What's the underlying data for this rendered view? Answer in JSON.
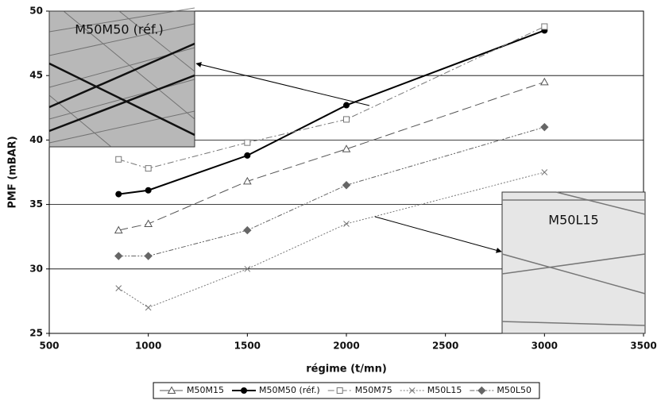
{
  "chart_data": {
    "type": "line",
    "x_label": "régime (t/mn)",
    "y_label": "PMF (mBAR)",
    "x": [
      850,
      1000,
      1500,
      2000,
      3000
    ],
    "xlim": [
      500,
      3500
    ],
    "xticks": [
      500,
      1000,
      1500,
      2000,
      2500,
      3000,
      3500
    ],
    "ylim": [
      25,
      50
    ],
    "yticks": [
      25,
      30,
      35,
      40,
      45,
      50
    ],
    "grid": true,
    "legend": "bottom",
    "series": [
      {
        "name": "M50M15",
        "color": "#555555",
        "marker": "triangle",
        "dash": "long-dash",
        "values": [
          33,
          33.5,
          36.8,
          39.3,
          44.5
        ]
      },
      {
        "name": "M50M50 (réf.)",
        "color": "#000000",
        "marker": "circle",
        "dash": "solid",
        "values": [
          35.8,
          36.1,
          38.8,
          42.7,
          48.5
        ]
      },
      {
        "name": "M50M75",
        "color": "#777777",
        "marker": "square",
        "dash": "dash-dot",
        "values": [
          38.5,
          37.8,
          39.8,
          41.6,
          48.8
        ]
      },
      {
        "name": "M50L15",
        "color": "#777777",
        "marker": "x",
        "dash": "dotted",
        "values": [
          28.5,
          27,
          30,
          33.5,
          37.5
        ]
      },
      {
        "name": "M50L50",
        "color": "#666666",
        "marker": "diamond",
        "dash": "dash-dot-dot",
        "values": [
          31,
          31,
          33,
          36.5,
          41
        ]
      }
    ],
    "annotations": [
      {
        "text": "M50M50 (réf.)"
      },
      {
        "text": "M50L15"
      }
    ]
  }
}
